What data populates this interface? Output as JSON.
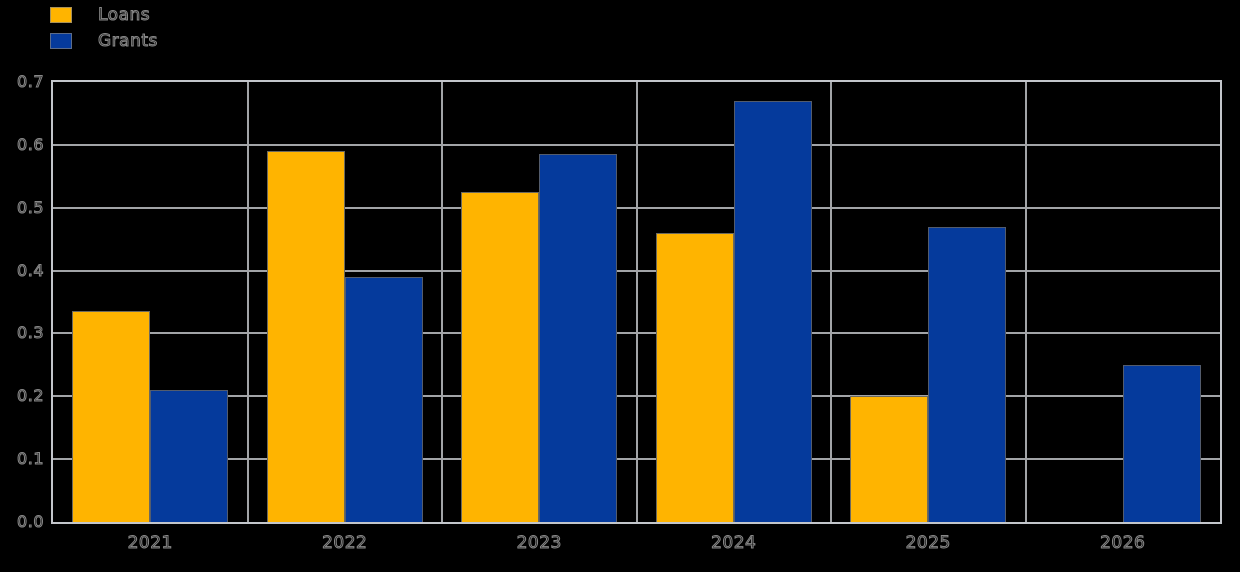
{
  "colors": {
    "background": "#000000",
    "frame": "#c3c6cb",
    "grid": "#a2a4a7",
    "bar_edge": "#5c6168",
    "text": "#0a0a0a",
    "text_outline": "#a0a0a0",
    "loans": "#ffb400",
    "grants": "#053a9c"
  },
  "chart_data": {
    "type": "bar",
    "title": "",
    "xlabel": "",
    "ylabel": "",
    "categories": [
      "2021",
      "2022",
      "2023",
      "2024",
      "2025",
      "2026"
    ],
    "series": [
      {
        "name": "Loans",
        "color": "#ffb400",
        "values": [
          0.335,
          0.59,
          0.525,
          0.46,
          0.2,
          0
        ]
      },
      {
        "name": "Grants",
        "color": "#053a9c",
        "values": [
          0.21,
          0.39,
          0.585,
          0.67,
          0.47,
          0.25
        ]
      }
    ],
    "ylim": [
      0,
      0.7
    ],
    "ytick_step": 0.1,
    "ytick_labels": [
      "0.0",
      "0.1",
      "0.2",
      "0.3",
      "0.4",
      "0.5",
      "0.6",
      "0.7"
    ],
    "grid": true,
    "vertical_grid_between_groups": true,
    "legend_position": "top-left"
  }
}
